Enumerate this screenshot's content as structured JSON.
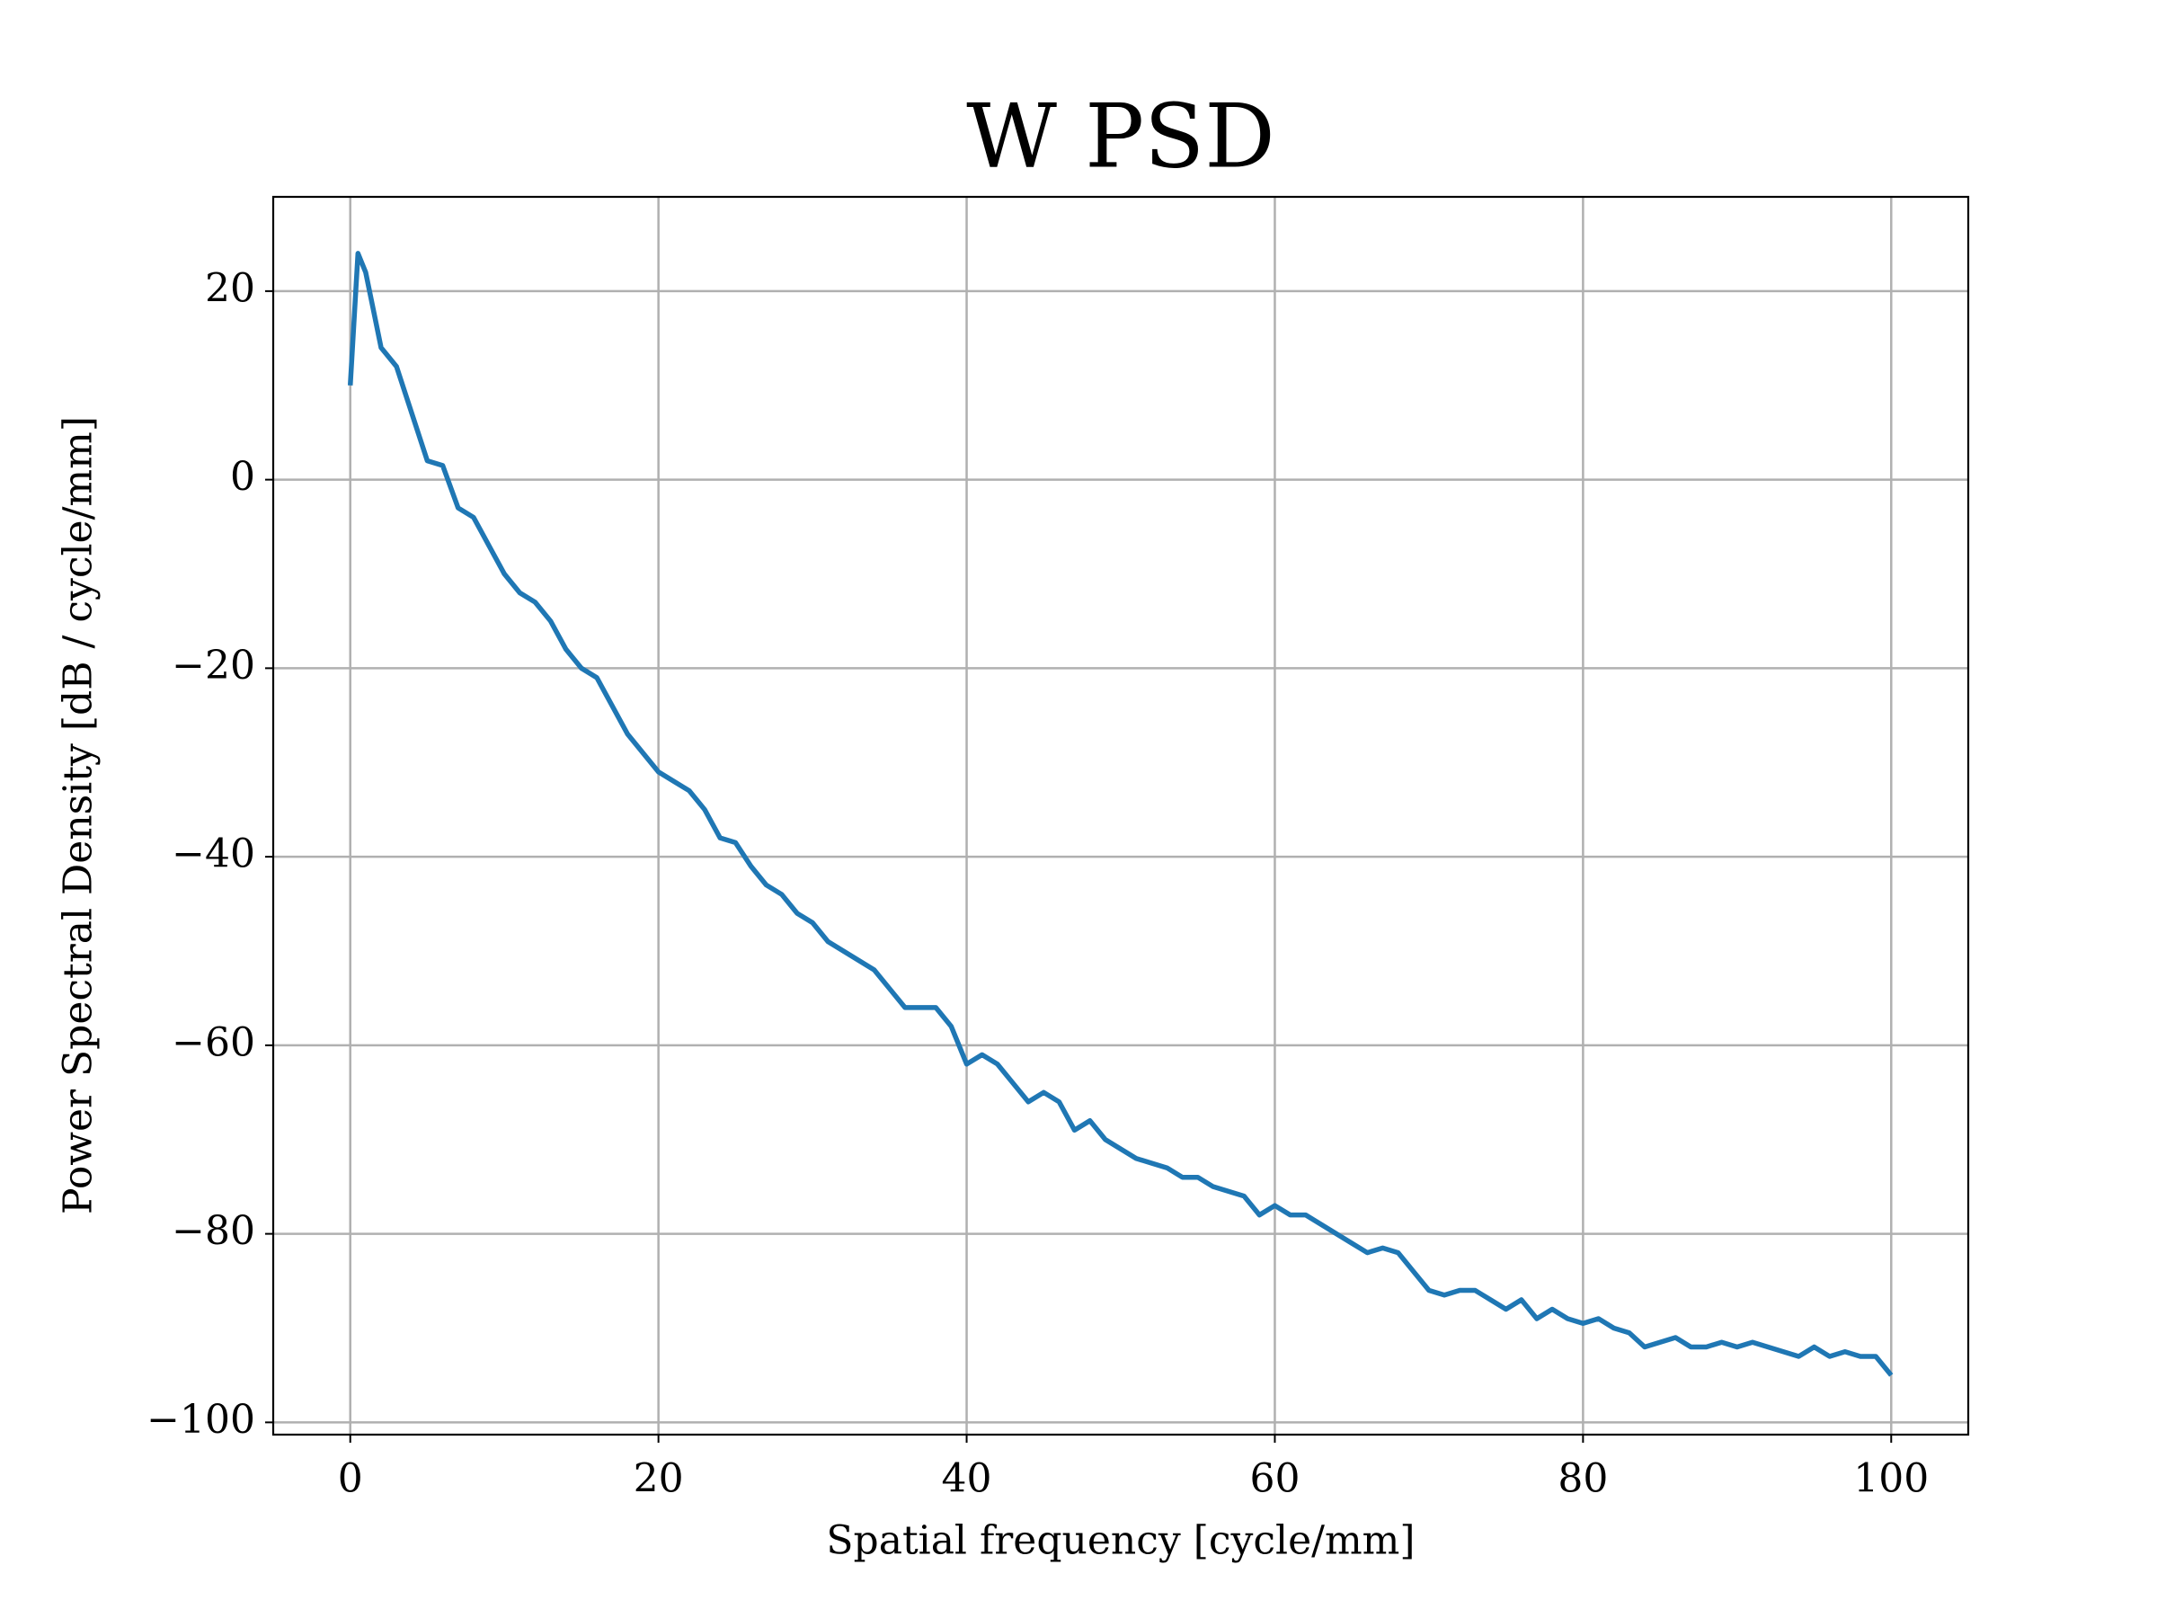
{
  "chart_data": {
    "type": "line",
    "title": "W PSD",
    "xlabel": "Spatial frequency [cycle/mm]",
    "ylabel": "Power Spectral Density [dB / cycle/mm]",
    "x": [
      0,
      0.5,
      1,
      1.5,
      2,
      3,
      4,
      5,
      6,
      7,
      8,
      9,
      10,
      11,
      12,
      13,
      14,
      15,
      16,
      17,
      18,
      19,
      20,
      21,
      22,
      23,
      24,
      25,
      26,
      27,
      28,
      29,
      30,
      31,
      32,
      33,
      34,
      35,
      36,
      37,
      38,
      39,
      40,
      41,
      42,
      43,
      44,
      45,
      46,
      47,
      48,
      49,
      50,
      51,
      52,
      53,
      54,
      55,
      56,
      57,
      58,
      59,
      60,
      61,
      62,
      63,
      64,
      65,
      66,
      67,
      68,
      69,
      70,
      71,
      72,
      73,
      74,
      75,
      76,
      77,
      78,
      79,
      80,
      81,
      82,
      83,
      84,
      85,
      86,
      87,
      88,
      89,
      90,
      91,
      92,
      93,
      94,
      95,
      96,
      97,
      98,
      99,
      100
    ],
    "series": [
      {
        "name": "W PSD",
        "color": "#1f77b4",
        "values": [
          10,
          24,
          22,
          18,
          14,
          12,
          7,
          2,
          1.5,
          -3,
          -4,
          -7,
          -10,
          -12,
          -13,
          -15,
          -18,
          -20,
          -21,
          -24,
          -27,
          -29,
          -31,
          -32,
          -33,
          -35,
          -38,
          -38.5,
          -41,
          -43,
          -44,
          -46,
          -47,
          -49,
          -50,
          -51,
          -52,
          -54,
          -56,
          -56,
          -56,
          -58,
          -62,
          -61,
          -62,
          -64,
          -66,
          -65,
          -66,
          -69,
          -68,
          -70,
          -71,
          -72,
          -72.5,
          -73,
          -74,
          -74,
          -75,
          -75.5,
          -76,
          -78,
          -77,
          -78,
          -78,
          -79,
          -80,
          -81,
          -82,
          -81.5,
          -82,
          -84,
          -86,
          -86.5,
          -86,
          -86,
          -87,
          -88,
          -87,
          -89,
          -88,
          -89,
          -89.5,
          -89,
          -90,
          -90.5,
          -92,
          -91.5,
          -91,
          -92,
          -92,
          -91.5,
          -92,
          -91.5,
          -92,
          -92.5,
          -93,
          -92,
          -93,
          -92.5,
          -93,
          -93,
          -95
        ]
      }
    ],
    "xlim": [
      -5,
      105
    ],
    "ylim": [
      -101.3,
      30
    ],
    "xticks": [
      0,
      20,
      40,
      60,
      80,
      100
    ],
    "yticks": [
      {
        "value": -100,
        "label": "−100"
      },
      {
        "value": -80,
        "label": "−80"
      },
      {
        "value": -60,
        "label": "−60"
      },
      {
        "value": -40,
        "label": "−40"
      },
      {
        "value": -20,
        "label": "−20"
      },
      0,
      20
    ],
    "grid": true
  }
}
